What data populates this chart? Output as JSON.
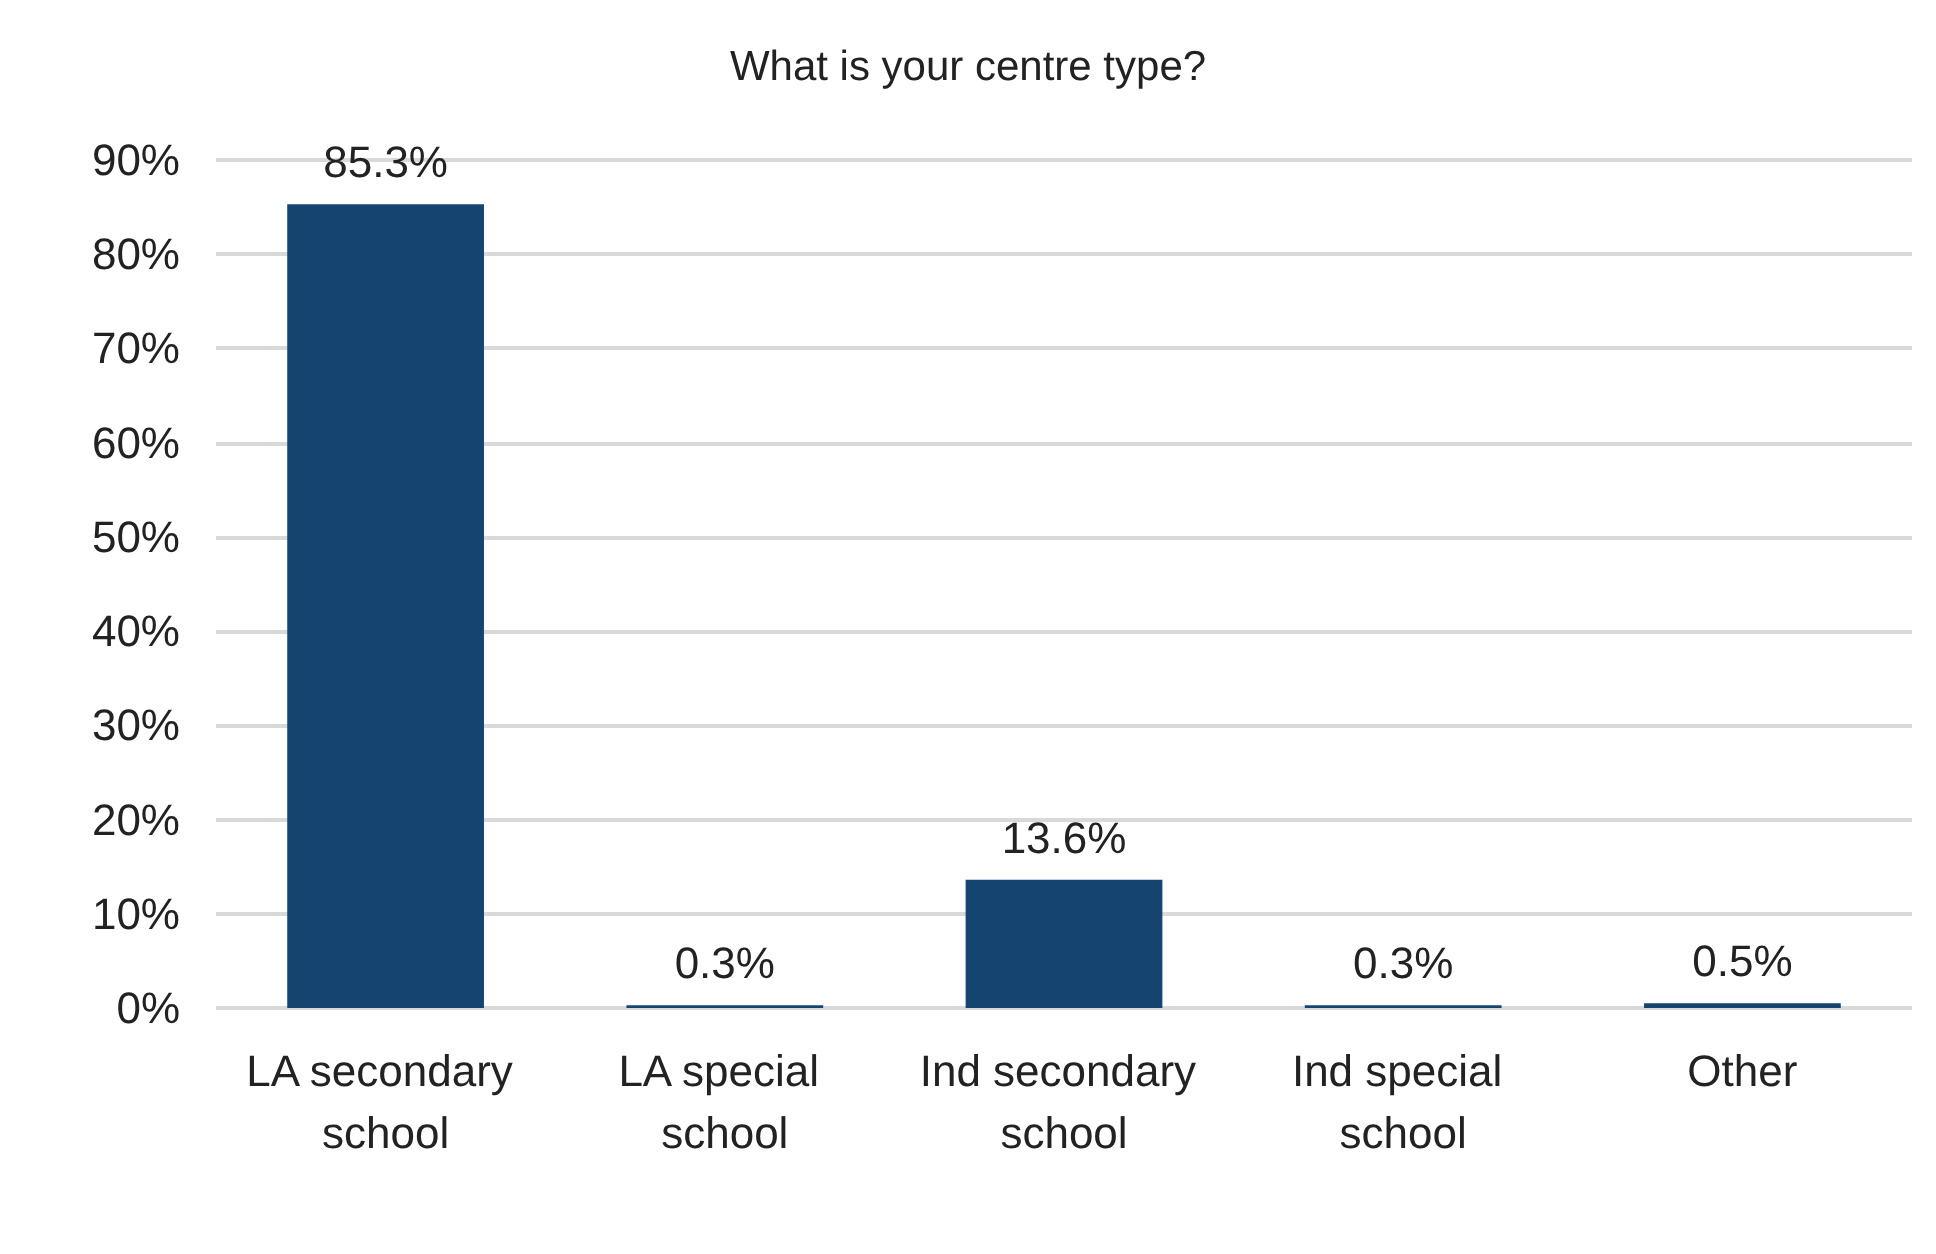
{
  "chart_data": {
    "type": "bar",
    "title": "What is your centre type?",
    "categories": [
      "LA secondary school",
      "LA special school",
      "Ind secondary school",
      "Ind special school",
      "Other"
    ],
    "values": [
      85.3,
      0.3,
      13.6,
      0.3,
      0.5
    ],
    "value_labels": [
      "85.3%",
      "0.3%",
      "13.6%",
      "0.3%",
      "0.5%"
    ],
    "color": "#154470",
    "ylim": [
      0,
      90
    ],
    "yticks": [
      {
        "value": 0,
        "label": "0%"
      },
      {
        "value": 10,
        "label": "10%"
      },
      {
        "value": 20,
        "label": "20%"
      },
      {
        "value": 30,
        "label": "30%"
      },
      {
        "value": 40,
        "label": "40%"
      },
      {
        "value": 50,
        "label": "50%"
      },
      {
        "value": 60,
        "label": "60%"
      },
      {
        "value": 70,
        "label": "70%"
      },
      {
        "value": 80,
        "label": "80%"
      },
      {
        "value": 90,
        "label": "90%"
      }
    ],
    "grid": "y"
  }
}
